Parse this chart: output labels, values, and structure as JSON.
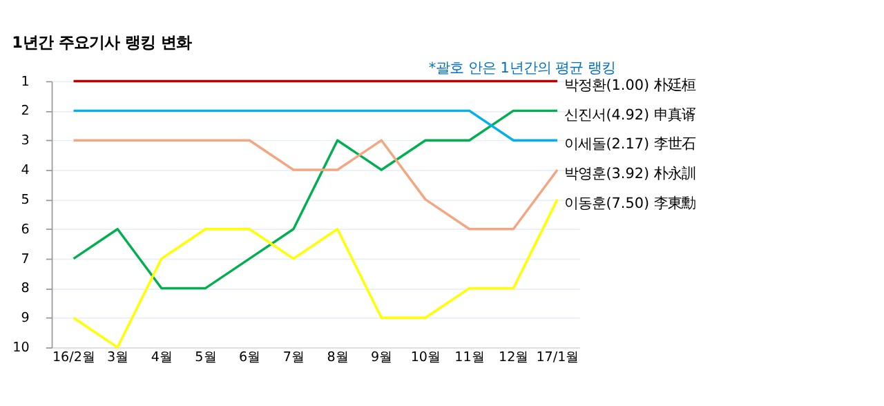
{
  "chart_data": {
    "type": "line",
    "title": "1년간 주요기사 랭킹 변화",
    "annotations": [
      "*괄호 안은 1년간의 평균 랭킹"
    ],
    "categories": [
      "16/2월",
      "3월",
      "4월",
      "5월",
      "6월",
      "7월",
      "8월",
      "9월",
      "10월",
      "11월",
      "12월",
      "17/1월"
    ],
    "series": [
      {
        "name": "박정환(1.00)  朴廷桓",
        "color": "#c00000",
        "values": [
          1,
          1,
          1,
          1,
          1,
          1,
          1,
          1,
          1,
          1,
          1,
          1
        ]
      },
      {
        "name": "신진서(4.92)  申真谞",
        "color": "#00b050",
        "values": [
          7,
          6,
          8,
          8,
          7,
          6,
          3,
          4,
          3,
          3,
          2,
          2
        ]
      },
      {
        "name": "이세돌(2.17)  李世石",
        "color": "#00b0f0",
        "values": [
          2,
          2,
          2,
          2,
          2,
          2,
          2,
          2,
          2,
          2,
          3,
          3
        ]
      },
      {
        "name": "박영훈(3.92)  朴永訓",
        "color": "#f4a582",
        "values": [
          3,
          3,
          3,
          3,
          3,
          4,
          4,
          3,
          5,
          6,
          6,
          4
        ]
      },
      {
        "name": "이동훈(7.50)  李東勳",
        "color": "#ffff00",
        "values": [
          9,
          10,
          7,
          6,
          6,
          7,
          6,
          9,
          9,
          8,
          8,
          5
        ]
      }
    ],
    "ylim": [
      10,
      1
    ],
    "yticks": [
      1,
      2,
      3,
      4,
      5,
      6,
      7,
      8,
      9,
      10
    ],
    "grid": "y",
    "marker": "none",
    "line_style": "solid"
  }
}
